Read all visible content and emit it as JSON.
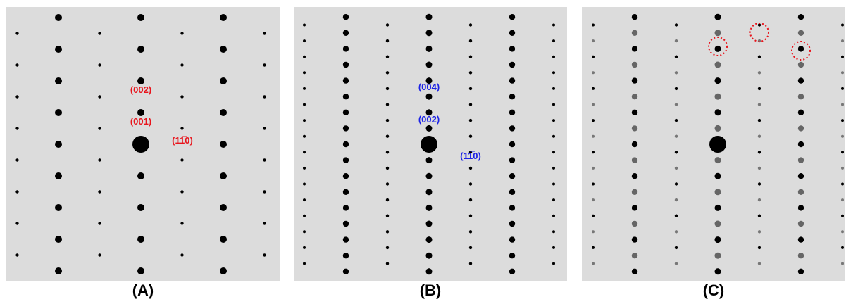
{
  "panels": [
    {
      "label": "(A)",
      "annotations": [
        "(002)",
        "(001)",
        "(11̅0)"
      ]
    },
    {
      "label": "(B)",
      "annotations": [
        "(004)",
        "(002)",
        "(11̅0)"
      ]
    },
    {
      "label": "(C)",
      "annotations": []
    }
  ]
}
